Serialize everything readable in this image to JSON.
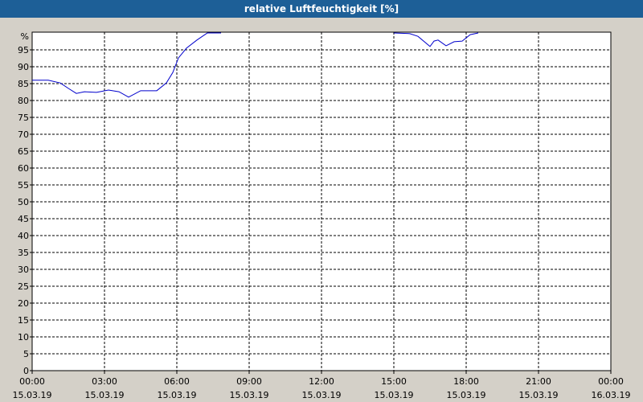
{
  "chart_data": {
    "type": "line",
    "title": "relative Luftfeuchtigkeit [%]",
    "y_label": "%",
    "x": [
      "00:00 15.03.19",
      "00:40 15.03.19",
      "01:10 15.03.19",
      "01:30 15.03.19",
      "01:50 15.03.19",
      "02:10 15.03.19",
      "02:40 15.03.19",
      "03:10 15.03.19",
      "03:36 15.03.19",
      "04:00 15.03.19",
      "04:30 15.03.19",
      "05:10 15.03.19",
      "05:34 15.03.19",
      "05:50 15.03.19",
      "06:04 15.03.19",
      "06:24 15.03.19",
      "06:50 15.03.19",
      "07:16 15.03.19",
      "07:50 15.03.19",
      "12:00 15.03.19",
      "15:00 15.03.19",
      "15:40 15.03.19",
      "16:00 15.03.19",
      "16:30 15.03.19",
      "16:40 15.03.19",
      "16:50 15.03.19",
      "17:10 15.03.19",
      "17:30 15.03.19",
      "17:50 15.03.19",
      "18:10 15.03.19",
      "18:30 15.03.19"
    ],
    "series": [
      {
        "color": "#0000cc",
        "values": [
          86.0,
          86.0,
          85.2,
          83.6,
          82.1,
          82.6,
          82.4,
          83.1,
          82.6,
          81.0,
          82.9,
          82.9,
          85.2,
          88.3,
          92.6,
          95.5,
          97.9,
          100,
          100,
          null,
          100,
          99.8,
          99.0,
          96.0,
          97.6,
          97.9,
          96.2,
          97.4,
          97.6,
          99.5,
          100
        ]
      }
    ],
    "xlim": [
      "00:00 15.03.19",
      "00:00 16.03.19"
    ],
    "xticks": [
      "00:00 15.03.19",
      "03:00 15.03.19",
      "06:00 15.03.19",
      "09:00 15.03.19",
      "12:00 15.03.19",
      "15:00 15.03.19",
      "18:00 15.03.19",
      "21:00 15.03.19",
      "00:00 16.03.19"
    ],
    "ylim": [
      0,
      100
    ],
    "yticks": [
      0,
      5,
      10,
      15,
      20,
      25,
      30,
      35,
      40,
      45,
      50,
      55,
      60,
      65,
      70,
      75,
      80,
      85,
      90,
      95
    ],
    "grid": true
  }
}
